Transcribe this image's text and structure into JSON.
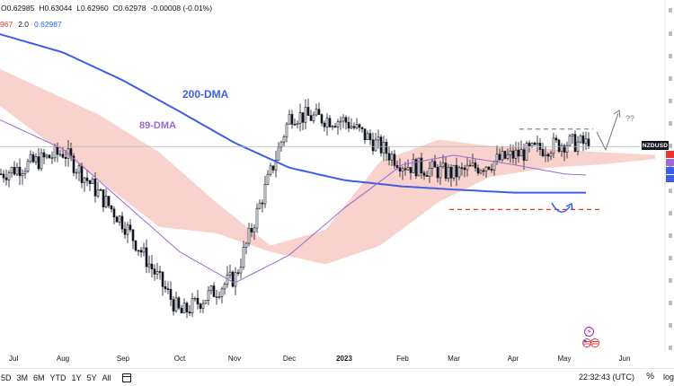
{
  "header": {
    "open": "O0.62985",
    "high": "H0.63044",
    "low": "L0.62960",
    "close": "C0.62978",
    "change": "-0.00008 (-0.01%)"
  },
  "legend": {
    "value1": "967",
    "value2": "2.0",
    "value3": "0.62987"
  },
  "colors": {
    "ma200": "#3f5ee6",
    "ma89": "#9c6ad6",
    "cloud_bear": "#f8cdc8",
    "cloud_bull": "#cfe8cf",
    "support_line": "#e53935",
    "resistance_line": "#888888",
    "candle": "#131722",
    "annotation_arrow": "#2962ff"
  },
  "ticker_label": "NZDUSD",
  "time_range_buttons": [
    "5D",
    "3M",
    "6M",
    "YTD",
    "1Y",
    "5Y",
    "All"
  ],
  "clock": "22:32:43 (UTC)",
  "percent_button": "%",
  "log_button": "log",
  "right_axis_hidden": true,
  "chart_data": {
    "type": "line",
    "instrument": "NZDUSD",
    "x_ticks": [
      "Jul",
      "Aug",
      "Sep",
      "Oct",
      "Nov",
      "Dec",
      "2023",
      "Feb",
      "Mar",
      "Apr",
      "May",
      "Jun"
    ],
    "annotations": [
      "200-DMA",
      "89-DMA",
      "??"
    ],
    "series": [
      {
        "name": "200-DMA",
        "values": [
          0.665,
          0.66,
          0.651,
          0.641,
          0.631,
          0.623,
          0.619,
          0.617,
          0.616,
          0.615,
          0.615,
          0.615
        ]
      },
      {
        "name": "89-DMA",
        "values": [
          0.637,
          0.629,
          0.612,
          0.596,
          0.586,
          0.595,
          0.61,
          0.624,
          0.627,
          0.624,
          0.621,
          0.62
        ]
      }
    ],
    "close_approx": [
      0.622,
      0.628,
      0.605,
      0.576,
      0.588,
      0.64,
      0.638,
      0.624,
      0.621,
      0.627,
      0.631,
      0.63
    ],
    "last_close": 0.62978,
    "support_level": 0.6096,
    "resistance_level": 0.6354,
    "grid": false,
    "legend": "top-left"
  }
}
